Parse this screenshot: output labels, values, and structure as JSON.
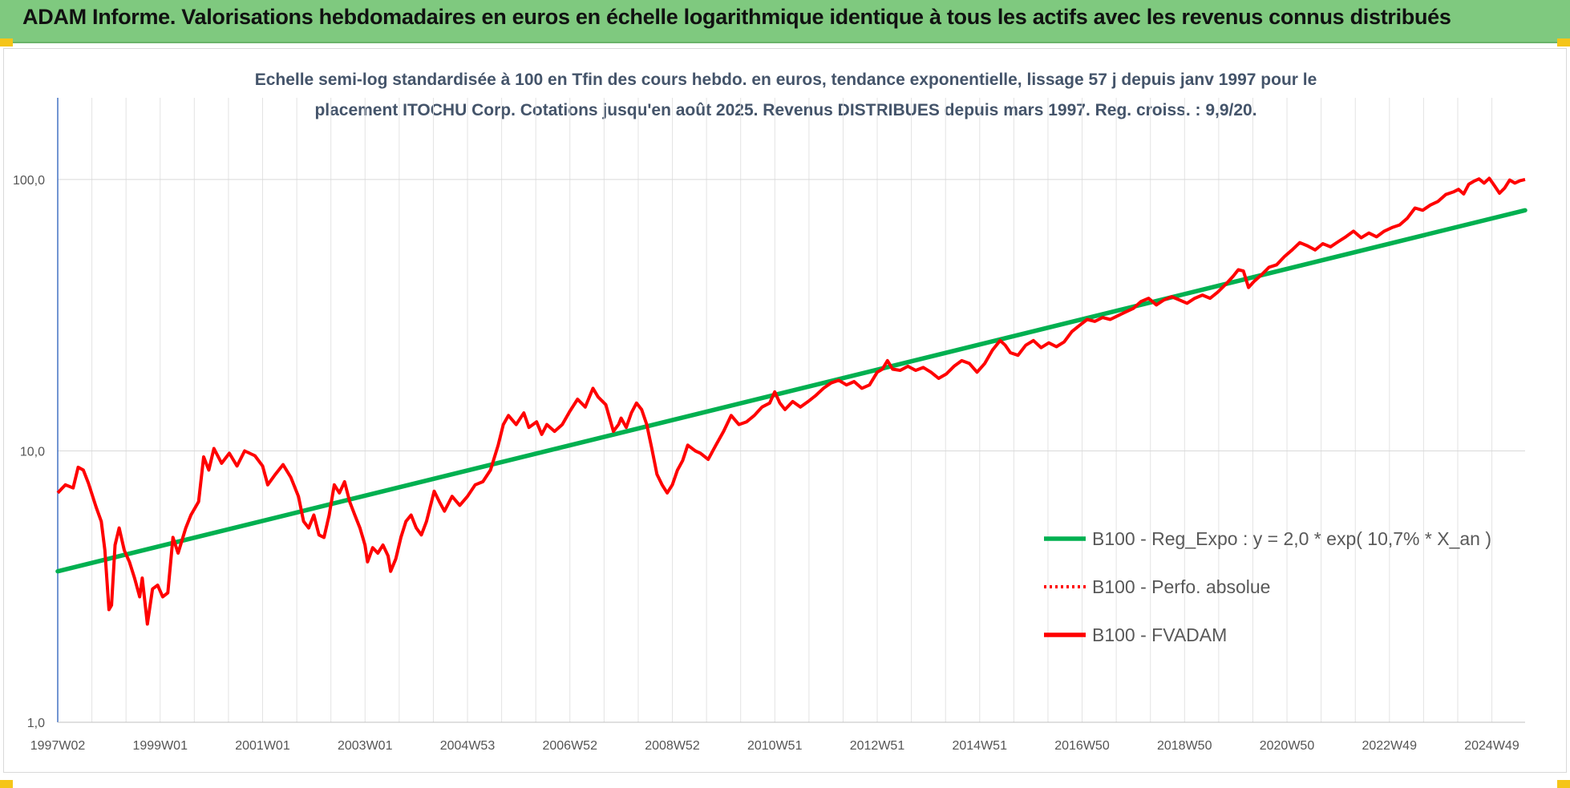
{
  "header": {
    "title": "ADAM Informe. Valorisations hebdomadaires en euros en échelle logarithmique identique à tous les actifs avec les revenus connus distribués"
  },
  "chart_data": {
    "type": "line",
    "title_line1": "Echelle semi-log standardisée à 100 en Tfin des cours hebdo. en euros, tendance exponentielle, lissage 57 j depuis janv 1997 pour le",
    "title_line2": "placement ITOCHU Corp. Cotations jusqu'en août 2025. Revenus DISTRIBUES depuis mars 1997. Reg. croiss. : 9,9/20.",
    "y_scale": "log",
    "ylim": [
      1,
      200
    ],
    "y_ticks": [
      {
        "value": 1,
        "label": "1,0"
      },
      {
        "value": 10,
        "label": "10,0"
      },
      {
        "value": 100,
        "label": "100,0"
      }
    ],
    "x_range": [
      1997.0,
      2025.65
    ],
    "x_ticks": [
      {
        "x": 1997.0,
        "label": "1997W02"
      },
      {
        "x": 1999.0,
        "label": "1999W01"
      },
      {
        "x": 2001.0,
        "label": "2001W01"
      },
      {
        "x": 2003.0,
        "label": "2003W01"
      },
      {
        "x": 2005.0,
        "label": "2004W53"
      },
      {
        "x": 2007.0,
        "label": "2006W52"
      },
      {
        "x": 2009.0,
        "label": "2008W52"
      },
      {
        "x": 2011.0,
        "label": "2010W51"
      },
      {
        "x": 2013.0,
        "label": "2012W51"
      },
      {
        "x": 2015.0,
        "label": "2014W51"
      },
      {
        "x": 2017.0,
        "label": "2016W50"
      },
      {
        "x": 2019.0,
        "label": "2018W50"
      },
      {
        "x": 2021.0,
        "label": "2020W50"
      },
      {
        "x": 2023.0,
        "label": "2022W49"
      },
      {
        "x": 2025.0,
        "label": "2024W49"
      }
    ],
    "grid": "vertical and horizontal",
    "legend_position": "bottom-right",
    "series": [
      {
        "name": "B100 - Reg_Expo : y = 2,0 * exp( 10,7% *  X_an )",
        "color": "#00b050",
        "style": "solid",
        "points": [
          [
            1997.0,
            3.6
          ],
          [
            2025.65,
            77.0
          ]
        ]
      },
      {
        "name": "B100 - Perfo. absolue",
        "color": "#ff0000",
        "style": "dotted",
        "points": []
      },
      {
        "name": "B100 - FVADAM",
        "color": "#ff0000",
        "style": "solid",
        "points": [
          [
            1997.0,
            7.0
          ],
          [
            1997.15,
            7.5
          ],
          [
            1997.3,
            7.3
          ],
          [
            1997.4,
            8.7
          ],
          [
            1997.5,
            8.5
          ],
          [
            1997.6,
            7.6
          ],
          [
            1997.75,
            6.2
          ],
          [
            1997.85,
            5.5
          ],
          [
            1997.92,
            4.3
          ],
          [
            1998.0,
            2.6
          ],
          [
            1998.05,
            2.7
          ],
          [
            1998.12,
            4.5
          ],
          [
            1998.2,
            5.2
          ],
          [
            1998.3,
            4.3
          ],
          [
            1998.4,
            3.9
          ],
          [
            1998.5,
            3.4
          ],
          [
            1998.6,
            2.9
          ],
          [
            1998.65,
            3.4
          ],
          [
            1998.75,
            2.3
          ],
          [
            1998.85,
            3.1
          ],
          [
            1998.95,
            3.2
          ],
          [
            1999.05,
            2.9
          ],
          [
            1999.15,
            3.0
          ],
          [
            1999.25,
            4.8
          ],
          [
            1999.35,
            4.2
          ],
          [
            1999.5,
            5.2
          ],
          [
            1999.6,
            5.8
          ],
          [
            1999.75,
            6.5
          ],
          [
            1999.85,
            9.5
          ],
          [
            1999.95,
            8.5
          ],
          [
            2000.05,
            10.2
          ],
          [
            2000.2,
            9.0
          ],
          [
            2000.35,
            9.8
          ],
          [
            2000.5,
            8.8
          ],
          [
            2000.65,
            10.0
          ],
          [
            2000.85,
            9.6
          ],
          [
            2001.0,
            8.8
          ],
          [
            2001.1,
            7.5
          ],
          [
            2001.25,
            8.2
          ],
          [
            2001.4,
            8.9
          ],
          [
            2001.55,
            8.0
          ],
          [
            2001.7,
            6.8
          ],
          [
            2001.8,
            5.5
          ],
          [
            2001.9,
            5.2
          ],
          [
            2002.0,
            5.8
          ],
          [
            2002.1,
            4.9
          ],
          [
            2002.2,
            4.8
          ],
          [
            2002.3,
            5.8
          ],
          [
            2002.4,
            7.5
          ],
          [
            2002.5,
            7.0
          ],
          [
            2002.6,
            7.7
          ],
          [
            2002.7,
            6.5
          ],
          [
            2002.8,
            5.8
          ],
          [
            2002.9,
            5.2
          ],
          [
            2003.0,
            4.5
          ],
          [
            2003.05,
            3.9
          ],
          [
            2003.15,
            4.4
          ],
          [
            2003.25,
            4.2
          ],
          [
            2003.35,
            4.5
          ],
          [
            2003.45,
            4.1
          ],
          [
            2003.5,
            3.6
          ],
          [
            2003.6,
            4.0
          ],
          [
            2003.7,
            4.8
          ],
          [
            2003.8,
            5.5
          ],
          [
            2003.9,
            5.8
          ],
          [
            2004.0,
            5.2
          ],
          [
            2004.1,
            4.9
          ],
          [
            2004.2,
            5.5
          ],
          [
            2004.35,
            7.1
          ],
          [
            2004.45,
            6.5
          ],
          [
            2004.55,
            6.0
          ],
          [
            2004.7,
            6.8
          ],
          [
            2004.85,
            6.3
          ],
          [
            2005.0,
            6.8
          ],
          [
            2005.15,
            7.5
          ],
          [
            2005.3,
            7.7
          ],
          [
            2005.45,
            8.5
          ],
          [
            2005.6,
            10.5
          ],
          [
            2005.7,
            12.5
          ],
          [
            2005.8,
            13.5
          ],
          [
            2005.95,
            12.5
          ],
          [
            2006.1,
            13.8
          ],
          [
            2006.2,
            12.2
          ],
          [
            2006.35,
            12.8
          ],
          [
            2006.45,
            11.5
          ],
          [
            2006.55,
            12.5
          ],
          [
            2006.7,
            11.8
          ],
          [
            2006.85,
            12.5
          ],
          [
            2007.0,
            14.0
          ],
          [
            2007.15,
            15.5
          ],
          [
            2007.3,
            14.5
          ],
          [
            2007.45,
            17.0
          ],
          [
            2007.55,
            15.8
          ],
          [
            2007.7,
            14.8
          ],
          [
            2007.85,
            11.8
          ],
          [
            2007.95,
            12.5
          ],
          [
            2008.0,
            13.2
          ],
          [
            2008.1,
            12.2
          ],
          [
            2008.2,
            13.8
          ],
          [
            2008.3,
            15.0
          ],
          [
            2008.4,
            14.2
          ],
          [
            2008.5,
            12.5
          ],
          [
            2008.6,
            10.2
          ],
          [
            2008.7,
            8.2
          ],
          [
            2008.8,
            7.5
          ],
          [
            2008.9,
            7.0
          ],
          [
            2009.0,
            7.5
          ],
          [
            2009.1,
            8.5
          ],
          [
            2009.2,
            9.2
          ],
          [
            2009.3,
            10.5
          ],
          [
            2009.45,
            10.0
          ],
          [
            2009.55,
            9.8
          ],
          [
            2009.7,
            9.3
          ],
          [
            2009.85,
            10.5
          ],
          [
            2010.0,
            11.8
          ],
          [
            2010.15,
            13.5
          ],
          [
            2010.3,
            12.5
          ],
          [
            2010.45,
            12.8
          ],
          [
            2010.6,
            13.5
          ],
          [
            2010.75,
            14.5
          ],
          [
            2010.9,
            15.0
          ],
          [
            2011.0,
            16.5
          ],
          [
            2011.1,
            15.0
          ],
          [
            2011.2,
            14.2
          ],
          [
            2011.35,
            15.2
          ],
          [
            2011.5,
            14.5
          ],
          [
            2011.65,
            15.2
          ],
          [
            2011.8,
            16.0
          ],
          [
            2011.95,
            17.0
          ],
          [
            2012.1,
            17.8
          ],
          [
            2012.25,
            18.2
          ],
          [
            2012.4,
            17.5
          ],
          [
            2012.55,
            18.0
          ],
          [
            2012.7,
            17.0
          ],
          [
            2012.85,
            17.5
          ],
          [
            2013.0,
            19.5
          ],
          [
            2013.1,
            20.0
          ],
          [
            2013.2,
            21.5
          ],
          [
            2013.3,
            20.0
          ],
          [
            2013.45,
            19.8
          ],
          [
            2013.6,
            20.5
          ],
          [
            2013.75,
            19.8
          ],
          [
            2013.9,
            20.3
          ],
          [
            2014.05,
            19.5
          ],
          [
            2014.2,
            18.5
          ],
          [
            2014.35,
            19.2
          ],
          [
            2014.5,
            20.5
          ],
          [
            2014.65,
            21.5
          ],
          [
            2014.8,
            21.0
          ],
          [
            2014.95,
            19.5
          ],
          [
            2015.1,
            21.0
          ],
          [
            2015.25,
            23.5
          ],
          [
            2015.4,
            25.5
          ],
          [
            2015.5,
            24.5
          ],
          [
            2015.6,
            23.0
          ],
          [
            2015.75,
            22.5
          ],
          [
            2015.9,
            24.5
          ],
          [
            2016.05,
            25.5
          ],
          [
            2016.2,
            24.0
          ],
          [
            2016.35,
            25.0
          ],
          [
            2016.5,
            24.2
          ],
          [
            2016.65,
            25.2
          ],
          [
            2016.8,
            27.5
          ],
          [
            2016.95,
            29.0
          ],
          [
            2017.1,
            30.5
          ],
          [
            2017.25,
            30.0
          ],
          [
            2017.4,
            31.0
          ],
          [
            2017.55,
            30.5
          ],
          [
            2017.7,
            31.5
          ],
          [
            2017.85,
            32.5
          ],
          [
            2018.0,
            33.5
          ],
          [
            2018.15,
            35.5
          ],
          [
            2018.3,
            36.5
          ],
          [
            2018.45,
            34.5
          ],
          [
            2018.6,
            36.0
          ],
          [
            2018.75,
            37.0
          ],
          [
            2018.9,
            36.0
          ],
          [
            2019.05,
            35.0
          ],
          [
            2019.2,
            36.5
          ],
          [
            2019.35,
            37.5
          ],
          [
            2019.5,
            36.5
          ],
          [
            2019.65,
            38.5
          ],
          [
            2019.8,
            41.0
          ],
          [
            2019.95,
            44.0
          ],
          [
            2020.05,
            46.5
          ],
          [
            2020.15,
            46.0
          ],
          [
            2020.25,
            40.0
          ],
          [
            2020.35,
            42.0
          ],
          [
            2020.5,
            44.5
          ],
          [
            2020.65,
            47.5
          ],
          [
            2020.8,
            48.5
          ],
          [
            2020.95,
            52.0
          ],
          [
            2021.1,
            55.0
          ],
          [
            2021.25,
            58.5
          ],
          [
            2021.4,
            57.0
          ],
          [
            2021.55,
            55.0
          ],
          [
            2021.7,
            58.0
          ],
          [
            2021.85,
            56.5
          ],
          [
            2022.0,
            59.0
          ],
          [
            2022.15,
            61.5
          ],
          [
            2022.3,
            64.5
          ],
          [
            2022.45,
            61.0
          ],
          [
            2022.6,
            63.5
          ],
          [
            2022.75,
            61.5
          ],
          [
            2022.9,
            64.5
          ],
          [
            2023.05,
            66.5
          ],
          [
            2023.2,
            68.0
          ],
          [
            2023.35,
            72.0
          ],
          [
            2023.5,
            78.5
          ],
          [
            2023.65,
            77.0
          ],
          [
            2023.8,
            80.5
          ],
          [
            2023.95,
            83.0
          ],
          [
            2024.1,
            88.0
          ],
          [
            2024.25,
            90.0
          ],
          [
            2024.35,
            92.0
          ],
          [
            2024.45,
            88.5
          ],
          [
            2024.55,
            96.0
          ],
          [
            2024.65,
            98.5
          ],
          [
            2024.75,
            100.5
          ],
          [
            2024.85,
            97.0
          ],
          [
            2024.95,
            101.0
          ],
          [
            2025.05,
            95.0
          ],
          [
            2025.15,
            89.0
          ],
          [
            2025.25,
            93.0
          ],
          [
            2025.35,
            99.5
          ],
          [
            2025.45,
            97.0
          ],
          [
            2025.55,
            99.0
          ],
          [
            2025.65,
            100.0
          ]
        ]
      }
    ]
  }
}
